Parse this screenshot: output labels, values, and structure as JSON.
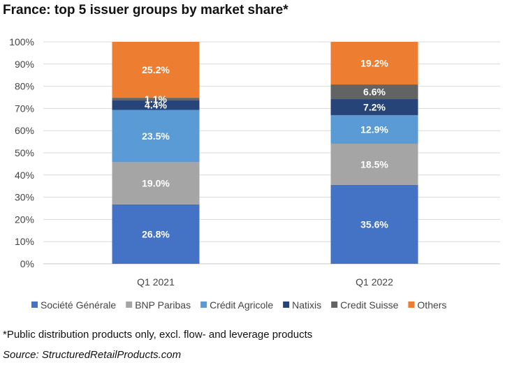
{
  "title": "France: top 5 issuer groups by market share*",
  "footnote": "*Public distribution products only, excl. flow- and leverage products",
  "source": "Source: StructuredRetailProducts.com",
  "chart_data": {
    "type": "bar",
    "stacked": true,
    "categories": [
      "Q1 2021",
      "Q1 2022"
    ],
    "ylim": [
      0,
      100
    ],
    "yticks": [
      "0%",
      "10%",
      "20%",
      "30%",
      "40%",
      "50%",
      "60%",
      "70%",
      "80%",
      "90%",
      "100%"
    ],
    "grid": true,
    "legend_position": "bottom",
    "series": [
      {
        "name": "Société Générale",
        "color": "#4472C4",
        "values": [
          26.8,
          35.6
        ],
        "labels": [
          "26.8%",
          "35.6%"
        ]
      },
      {
        "name": "BNP Paribas",
        "color": "#A5A5A5",
        "values": [
          19.0,
          18.5
        ],
        "labels": [
          "19.0%",
          "18.5%"
        ]
      },
      {
        "name": "Crédit Agricole",
        "color": "#5B9BD5",
        "values": [
          23.5,
          12.9
        ],
        "labels": [
          "23.5%",
          "12.9%"
        ]
      },
      {
        "name": "Natixis",
        "color": "#264478",
        "values": [
          4.4,
          7.2
        ],
        "labels": [
          "4.4%",
          "7.2%"
        ]
      },
      {
        "name": "Credit Suisse",
        "color": "#636363",
        "values": [
          1.1,
          6.6
        ],
        "labels": [
          "1.1%",
          "6.6%"
        ]
      },
      {
        "name": "Others",
        "color": "#ED7D31",
        "values": [
          25.2,
          19.2
        ],
        "labels": [
          "25.2%",
          "19.2%"
        ]
      }
    ]
  }
}
